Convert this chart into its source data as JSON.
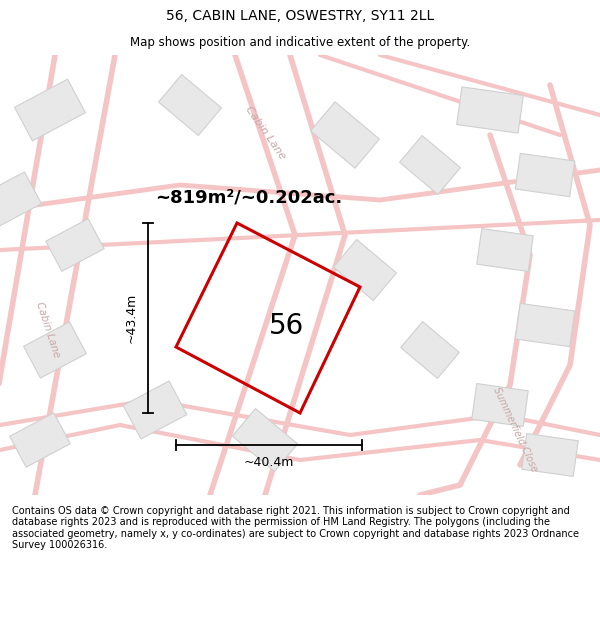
{
  "title": "56, CABIN LANE, OSWESTRY, SY11 2LL",
  "subtitle": "Map shows position and indicative extent of the property.",
  "area_label": "~819m²/~0.202ac.",
  "plot_number": "56",
  "dim_width": "~40.4m",
  "dim_height": "~43.4m",
  "footer": "Contains OS data © Crown copyright and database right 2021. This information is subject to Crown copyright and database rights 2023 and is reproduced with the permission of HM Land Registry. The polygons (including the associated geometry, namely x, y co-ordinates) are subject to Crown copyright and database rights 2023 Ordnance Survey 100026316.",
  "bg_color": "#ffffff",
  "road_color": "#f5c5c5",
  "building_color": "#e8e8e8",
  "building_edge_color": "#d0d0d0",
  "plot_color": "#cc0000",
  "road_label_color": "#c8a8a8",
  "title_color": "#000000",
  "footer_color": "#000000",
  "map_bg": "#f8f8f8"
}
